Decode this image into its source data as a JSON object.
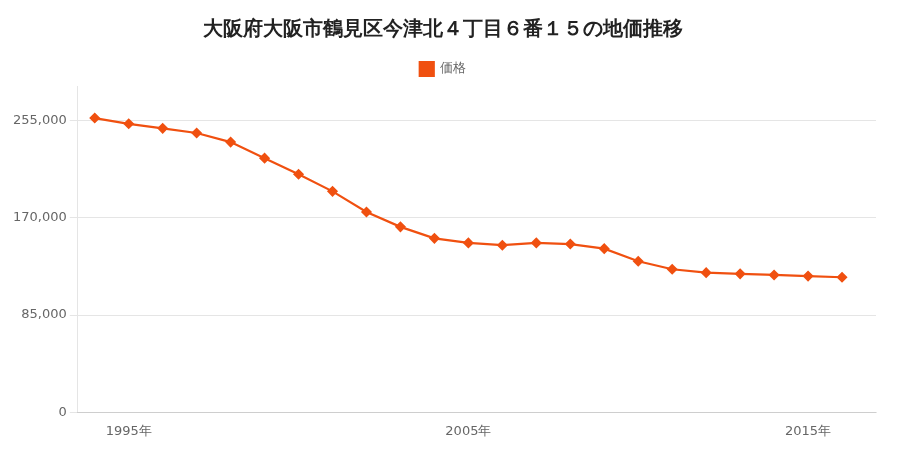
{
  "chart_data": {
    "type": "line",
    "title": "大阪府大阪市鶴見区今津北４丁目６番１５の地価推移",
    "x": [
      1994,
      1995,
      1996,
      1997,
      1998,
      1999,
      2000,
      2001,
      2002,
      2003,
      2004,
      2005,
      2006,
      2007,
      2008,
      2009,
      2010,
      2011,
      2012,
      2013,
      2014,
      2015,
      2016
    ],
    "series": [
      {
        "name": "価格",
        "color": "#f05010",
        "marker": "diamond",
        "line_style": "solid",
        "values": [
          257000,
          252000,
          248000,
          244000,
          236000,
          222000,
          208000,
          193000,
          175000,
          162000,
          152000,
          148000,
          146000,
          148000,
          147000,
          143000,
          132000,
          125000,
          122000,
          121000,
          120000,
          119000,
          118000
        ]
      }
    ],
    "xlim": [
      1993.5,
      2017
    ],
    "xticks": [
      {
        "value": 1995,
        "label": "1995年"
      },
      {
        "value": 2005,
        "label": "2005年"
      },
      {
        "value": 2015,
        "label": "2015年"
      }
    ],
    "ylim": [
      0,
      285000
    ],
    "yticks": [
      0,
      {
        "value": 85000,
        "label": "85,000"
      },
      {
        "value": 170000,
        "label": "170,000"
      },
      {
        "value": 255000,
        "label": "255,000"
      }
    ],
    "grid": "y",
    "legend": "top"
  }
}
